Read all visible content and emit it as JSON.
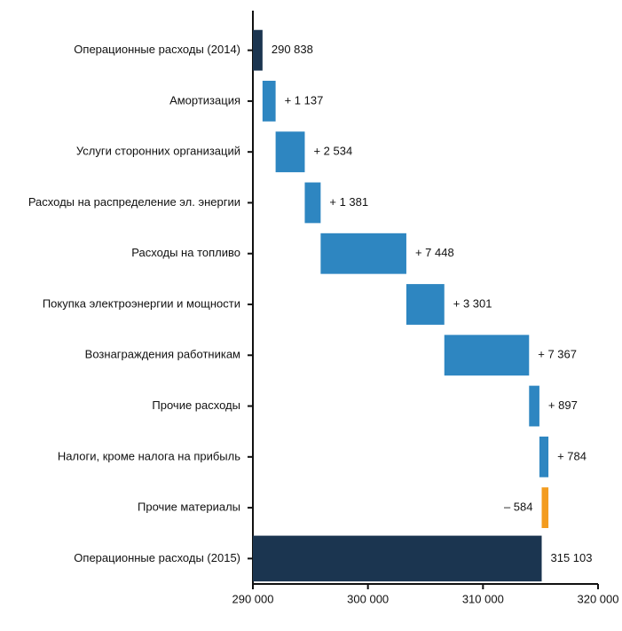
{
  "chart_data": {
    "type": "waterfall",
    "orientation": "horizontal",
    "categories": [
      "Операционные расходы (2014)",
      "Амортизация",
      "Услуги сторонних организаций",
      "Расходы на распределение эл. энергии",
      "Расходы на топливо",
      "Покупка электроэнергии и мощности",
      "Вознаграждения работникам",
      "Прочие расходы",
      "Налоги, кроме налога на прибыль",
      "Прочие материалы",
      "Операционные расходы (2015)"
    ],
    "values": [
      290838,
      1137,
      2534,
      1381,
      7448,
      3301,
      7367,
      897,
      784,
      -584,
      315103
    ],
    "value_labels": [
      "290 838",
      "+ 1 137",
      "+ 2 534",
      "+ 1 381",
      "+ 7 448",
      "+ 3 301",
      "+ 7 367",
      "+ 897",
      "+ 784",
      "– 584",
      "315 103"
    ],
    "measure": [
      "absolute",
      "relative",
      "relative",
      "relative",
      "relative",
      "relative",
      "relative",
      "relative",
      "relative",
      "relative",
      "absolute"
    ],
    "colors": {
      "absolute": "#1b3550",
      "increase": "#2e86c1",
      "decrease": "#f39c1f"
    },
    "xlim": [
      290000,
      320000
    ],
    "xticks": [
      {
        "value": 290000,
        "label": "290 000"
      },
      {
        "value": 300000,
        "label": "300 000"
      },
      {
        "value": 310000,
        "label": "310 000"
      },
      {
        "value": 320000,
        "label": "320 000"
      }
    ]
  }
}
